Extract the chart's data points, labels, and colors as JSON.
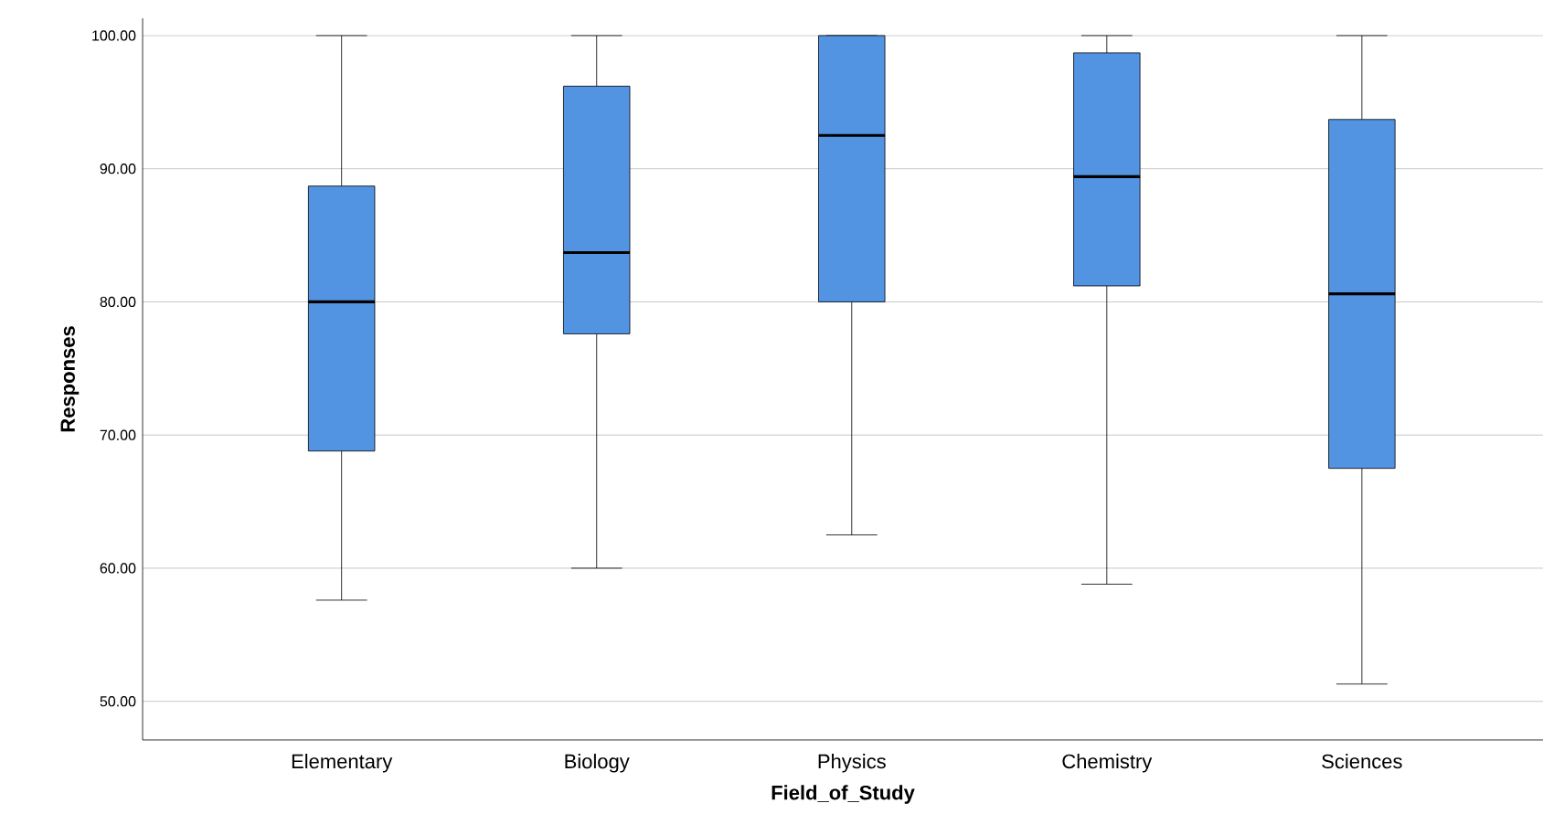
{
  "chart_data": {
    "type": "box",
    "xlabel": "Field_of_Study",
    "ylabel": "Responses",
    "categories": [
      "Elementary",
      "Biology",
      "Physics",
      "Chemistry",
      "Sciences"
    ],
    "color": "#5294e2",
    "boxes": [
      {
        "low": 57.6,
        "q1": 68.8,
        "median": 80.0,
        "q3": 88.7,
        "high": 100
      },
      {
        "low": 60.0,
        "q1": 77.6,
        "median": 83.7,
        "q3": 96.2,
        "high": 100
      },
      {
        "low": 62.5,
        "q1": 80.0,
        "median": 92.5,
        "q3": 100,
        "high": 100
      },
      {
        "low": 58.8,
        "q1": 81.2,
        "median": 89.4,
        "q3": 98.7,
        "high": 100
      },
      {
        "low": 51.3,
        "q1": 67.5,
        "median": 80.6,
        "q3": 93.7,
        "high": 100
      }
    ],
    "ylim": [
      47.1,
      101.3
    ],
    "yticks": [
      {
        "value": 50,
        "label": "50.00"
      },
      {
        "value": 60,
        "label": "60.00"
      },
      {
        "value": 70,
        "label": "70.00"
      },
      {
        "value": 80,
        "label": "80.00"
      },
      {
        "value": 90,
        "label": "90.00"
      },
      {
        "value": 100,
        "label": "100.00"
      }
    ],
    "grid": "y"
  }
}
